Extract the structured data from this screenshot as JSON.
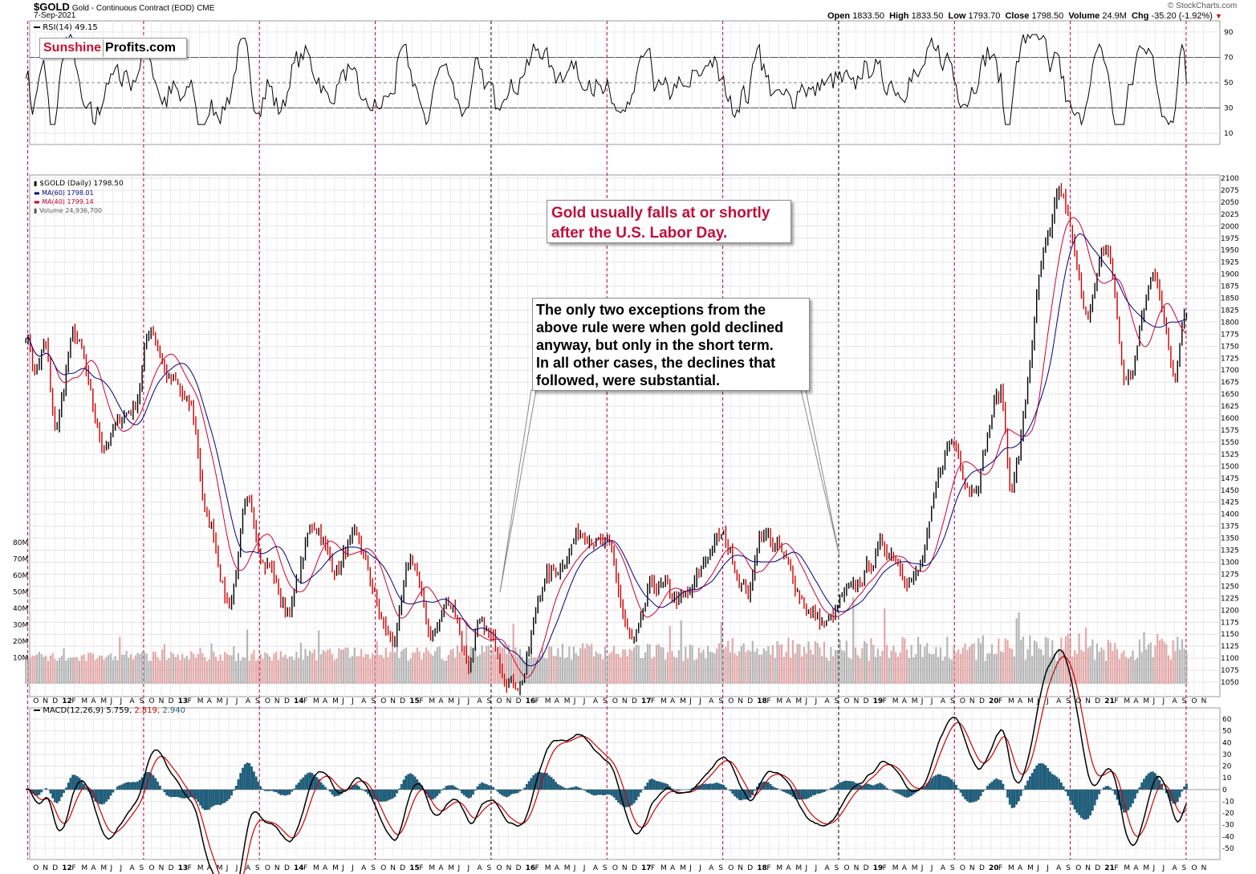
{
  "header": {
    "symbol": "$GOLD",
    "description": "Gold - Continuous Contract (EOD)",
    "exchange": "CME",
    "date": "7-Sep-2021",
    "watermark": "© StockCharts.com",
    "open_label": "Open",
    "open": "1833.50",
    "high_label": "High",
    "high": "1833.50",
    "low_label": "Low",
    "low": "1793.70",
    "close_label": "Close",
    "close": "1798.50",
    "volume_label": "Volume",
    "volume": "24.9M",
    "chg_label": "Chg",
    "chg": "-35.20 (-1.92%)"
  },
  "logo": {
    "part1": "Sunshine",
    "part2": "Profits.com"
  },
  "rsi": {
    "label": "RSI(14) 49.15",
    "levels": [
      90,
      70,
      50,
      30,
      10
    ]
  },
  "price_legend": {
    "main": "$GOLD (Daily) 1798.50",
    "ma60": "MA(60) 1798.01",
    "ma40": "MA(40) 1799.14",
    "volume": "Volume 24,936,700"
  },
  "macd": {
    "label_prefix": "MACD(12,26,9) 5.759,",
    "v2": "2.819,",
    "v3": "2.940"
  },
  "annotations": {
    "red": [
      "Gold usually falls at or shortly",
      "after the U.S. Labor Day."
    ],
    "black": [
      "The only two exceptions from the",
      "above rule were when gold declined",
      "anyway, but only in the short term.",
      "In all other cases, the declines that",
      "followed, were substantial."
    ]
  },
  "colors": {
    "price_up": "#000000",
    "price_down": "#cc0000",
    "ma60": "#000080",
    "ma40": "#cc0033",
    "volume_up": "#9e9e9e",
    "volume_down": "#d98c8c",
    "macd_hist": "#1f5d7a",
    "labor_day_line": "#b0004a",
    "exception_line": "#000000"
  },
  "chart_data": {
    "type": "line",
    "series_name": "$GOLD (Daily)",
    "x_axis_labels": [
      "O",
      "N",
      "D",
      "12",
      "F",
      "M",
      "A",
      "M",
      "J",
      "J",
      "A",
      "S",
      "O",
      "N",
      "D",
      "13",
      "F",
      "M",
      "A",
      "M",
      "J",
      "J",
      "A",
      "S",
      "O",
      "N",
      "D",
      "14",
      "F",
      "M",
      "A",
      "M",
      "J",
      "J",
      "A",
      "S",
      "O",
      "N",
      "D",
      "15",
      "F",
      "M",
      "A",
      "M",
      "J",
      "J",
      "A",
      "S",
      "O",
      "N",
      "D",
      "16",
      "F",
      "M",
      "A",
      "M",
      "J",
      "J",
      "A",
      "S",
      "O",
      "N",
      "D",
      "17",
      "F",
      "M",
      "A",
      "M",
      "J",
      "J",
      "A",
      "S",
      "O",
      "N",
      "D",
      "18",
      "F",
      "M",
      "A",
      "M",
      "J",
      "J",
      "A",
      "S",
      "O",
      "N",
      "D",
      "19",
      "F",
      "M",
      "A",
      "M",
      "J",
      "J",
      "A",
      "S",
      "O",
      "N",
      "D",
      "20",
      "F",
      "M",
      "A",
      "M",
      "J",
      "J",
      "A",
      "S",
      "O",
      "N",
      "D",
      "21",
      "F",
      "M",
      "A",
      "M",
      "J",
      "J",
      "A",
      "S",
      "O",
      "N"
    ],
    "price_axis_ticks": [
      2100,
      2075,
      2050,
      2025,
      2000,
      1975,
      1950,
      1925,
      1900,
      1875,
      1850,
      1825,
      1800,
      1775,
      1750,
      1725,
      1700,
      1675,
      1650,
      1625,
      1600,
      1575,
      1550,
      1525,
      1500,
      1475,
      1450,
      1425,
      1400,
      1375,
      1350,
      1325,
      1300,
      1275,
      1250,
      1225,
      1200,
      1175,
      1150,
      1125,
      1100,
      1075,
      1050
    ],
    "volume_axis_ticks": [
      "80M",
      "70M",
      "60M",
      "50M",
      "40M",
      "30M",
      "20M",
      "10M"
    ],
    "macd_axis_ticks": [
      60,
      50,
      40,
      30,
      20,
      10,
      0,
      -10,
      -20,
      -30,
      -40,
      -50
    ],
    "ylim": [
      1040,
      2100
    ],
    "price_path": [
      [
        "2011-09",
        1780
      ],
      [
        "2011-10",
        1700
      ],
      [
        "2011-11",
        1750
      ],
      [
        "2011-12",
        1580
      ],
      [
        "2012-02",
        1770
      ],
      [
        "2012-05",
        1550
      ],
      [
        "2012-08",
        1620
      ],
      [
        "2012-10",
        1785
      ],
      [
        "2012-12",
        1680
      ],
      [
        "2013-02",
        1620
      ],
      [
        "2013-04",
        1380
      ],
      [
        "2013-06",
        1220
      ],
      [
        "2013-08",
        1410
      ],
      [
        "2013-10",
        1300
      ],
      [
        "2013-12",
        1200
      ],
      [
        "2014-03",
        1380
      ],
      [
        "2014-05",
        1290
      ],
      [
        "2014-07",
        1340
      ],
      [
        "2014-11",
        1140
      ],
      [
        "2015-01",
        1300
      ],
      [
        "2015-03",
        1150
      ],
      [
        "2015-05",
        1220
      ],
      [
        "2015-07",
        1090
      ],
      [
        "2015-08",
        1160
      ],
      [
        "2015-12",
        1050
      ],
      [
        "2016-03",
        1270
      ],
      [
        "2016-07",
        1370
      ],
      [
        "2016-09",
        1330
      ],
      [
        "2016-12",
        1130
      ],
      [
        "2017-02",
        1250
      ],
      [
        "2017-05",
        1220
      ],
      [
        "2017-09",
        1350
      ],
      [
        "2017-12",
        1240
      ],
      [
        "2018-01",
        1360
      ],
      [
        "2018-08",
        1170
      ],
      [
        "2018-10",
        1230
      ],
      [
        "2019-02",
        1330
      ],
      [
        "2019-05",
        1270
      ],
      [
        "2019-09",
        1550
      ],
      [
        "2019-11",
        1460
      ],
      [
        "2020-02",
        1650
      ],
      [
        "2020-03",
        1470
      ],
      [
        "2020-07",
        1960
      ],
      [
        "2020-08",
        2070
      ],
      [
        "2020-11",
        1830
      ],
      [
        "2021-01",
        1950
      ],
      [
        "2021-03",
        1680
      ],
      [
        "2021-06",
        1900
      ],
      [
        "2021-08",
        1690
      ],
      [
        "2021-09",
        1830
      ]
    ],
    "rsi_last": 49.15,
    "labor_day_years": [
      2011,
      2012,
      2013,
      2014,
      2015,
      2016,
      2017,
      2018,
      2019,
      2020,
      2021
    ],
    "exception_years": [
      2015,
      2018
    ]
  }
}
